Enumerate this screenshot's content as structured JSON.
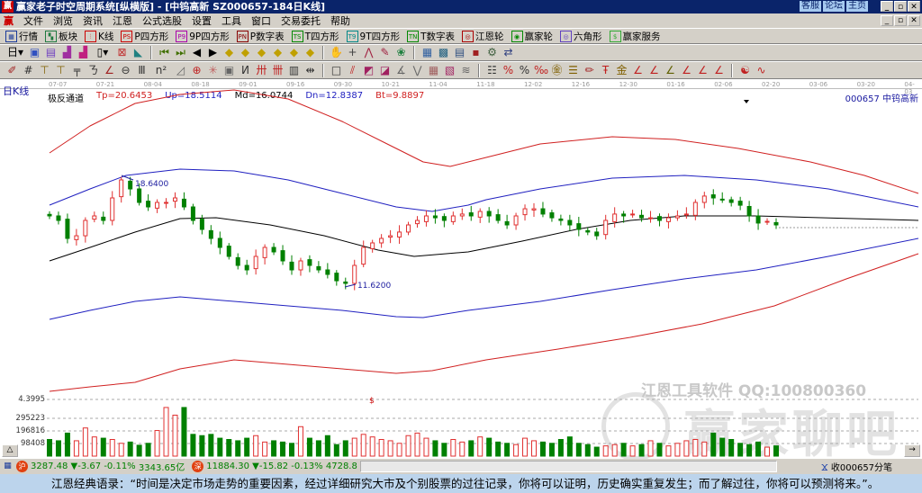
{
  "window": {
    "title": "赢家老子时空周期系统[纵横版] - [中钨高新   SZ000657-184日K线]",
    "logo": "赢",
    "links": [
      "客服",
      "论坛",
      "主页"
    ]
  },
  "menu": [
    "文件",
    "浏览",
    "资讯",
    "江恩",
    "公式选股",
    "设置",
    "工具",
    "窗口",
    "交易委托",
    "帮助"
  ],
  "toolbar1": [
    {
      "icon": "quote-grid-icon",
      "glyph": "▦",
      "color": "#1a3a9a",
      "label": "行情"
    },
    {
      "icon": "blocks-icon",
      "glyph": "▚",
      "color": "#207a40",
      "label": "板块"
    },
    {
      "icon": "kline-icon",
      "glyph": "⫶",
      "color": "#c00",
      "label": "K线"
    },
    {
      "icon": "ps-icon",
      "glyph": "PS",
      "color": "#c00",
      "label": "P四方形"
    },
    {
      "icon": "p9-icon",
      "glyph": "P9",
      "color": "#a0a",
      "label": "9P四方形"
    },
    {
      "icon": "pn-icon",
      "glyph": "PN",
      "color": "#800",
      "label": "P数字表"
    },
    {
      "icon": "ts-icon",
      "glyph": "TS",
      "color": "#080",
      "label": "T四方形"
    },
    {
      "icon": "t9-icon",
      "glyph": "T9",
      "color": "#088",
      "label": "9T四方形"
    },
    {
      "icon": "tn-icon",
      "glyph": "TN",
      "color": "#080",
      "label": "T数字表"
    },
    {
      "icon": "gann-wheel-icon",
      "glyph": "◎",
      "color": "#a00",
      "label": "江恩轮"
    },
    {
      "icon": "winner-wheel-icon",
      "glyph": "◉",
      "color": "#080",
      "label": "赢家轮"
    },
    {
      "icon": "hexagon-icon",
      "glyph": "◎",
      "color": "#6040c0",
      "label": "六角形"
    },
    {
      "icon": "dollar-icon",
      "glyph": "$",
      "color": "#3a3",
      "label": "赢家服务"
    }
  ],
  "toolbar2": [
    {
      "icon": "period-select-icon",
      "glyph": "日▾"
    },
    {
      "icon": "screen-icon",
      "glyph": "▣"
    },
    {
      "icon": "list-icon",
      "glyph": "▤"
    },
    {
      "icon": "bar-chart-icon",
      "glyph": "▟"
    },
    {
      "icon": "bar-chart-2-icon",
      "glyph": "▟"
    },
    {
      "icon": "candle-select-icon",
      "glyph": "▯▾"
    },
    {
      "icon": "calc-icon",
      "glyph": "⊠"
    },
    {
      "icon": "flag-icon",
      "glyph": "◣"
    },
    {
      "icon": "first-icon",
      "glyph": "⏮"
    },
    {
      "icon": "last-icon",
      "glyph": "⏭"
    },
    {
      "icon": "left-icon",
      "glyph": "◀"
    },
    {
      "icon": "right-icon",
      "glyph": "▶"
    },
    {
      "icon": "diamond-left-icon",
      "glyph": "◆"
    },
    {
      "icon": "diamond-right-icon",
      "glyph": "◆"
    },
    {
      "icon": "diamond-zoom-icon",
      "glyph": "◆"
    },
    {
      "icon": "diamond-shrink-icon",
      "glyph": "◆"
    },
    {
      "icon": "diamond-up-icon",
      "glyph": "◆"
    },
    {
      "icon": "diamond-down-icon",
      "glyph": "◆"
    },
    {
      "icon": "hand-icon",
      "glyph": "✋"
    },
    {
      "icon": "crosshair-icon",
      "glyph": "+"
    },
    {
      "icon": "line-icon",
      "glyph": "⋀"
    },
    {
      "icon": "draw-icon",
      "glyph": "✎"
    },
    {
      "icon": "brain-icon",
      "glyph": "❀"
    },
    {
      "icon": "calendar-icon",
      "glyph": "▦"
    },
    {
      "icon": "calculator-icon",
      "glyph": "▩"
    },
    {
      "icon": "notes-icon",
      "glyph": "▤"
    },
    {
      "icon": "save-icon",
      "glyph": "▪"
    },
    {
      "icon": "network-icon",
      "glyph": "⚙"
    },
    {
      "icon": "transfer-icon",
      "glyph": "⇄"
    }
  ],
  "toolbar3": [
    {
      "icon": "pen-icon",
      "glyph": "✐"
    },
    {
      "icon": "grid-icon",
      "glyph": "#"
    },
    {
      "icon": "gold-icon",
      "glyph": "⊤"
    },
    {
      "icon": "gold2-icon",
      "glyph": "⊤"
    },
    {
      "icon": "fib-icon",
      "glyph": "╤"
    },
    {
      "icon": "wave-icon",
      "glyph": "ㄋ"
    },
    {
      "icon": "angle-icon",
      "glyph": "∠"
    },
    {
      "icon": "circle-line-icon",
      "glyph": "⊖"
    },
    {
      "icon": "lines-icon",
      "glyph": "Ⅲ"
    },
    {
      "icon": "n2-icon",
      "glyph": "n²"
    },
    {
      "icon": "triangle-icon",
      "glyph": "◿"
    },
    {
      "icon": "target-icon",
      "glyph": "⊕"
    },
    {
      "icon": "star-icon",
      "glyph": "✳"
    },
    {
      "icon": "box-icon",
      "glyph": "▣"
    },
    {
      "icon": "slash-icon",
      "glyph": "И"
    },
    {
      "icon": "red-grid-icon",
      "glyph": "卅"
    },
    {
      "icon": "red-grid2-icon",
      "glyph": "卌"
    },
    {
      "icon": "bars-icon",
      "glyph": "▥"
    },
    {
      "icon": "width-icon",
      "glyph": "⇹"
    },
    {
      "icon": "square-icon",
      "glyph": "□"
    },
    {
      "icon": "fan-icon",
      "glyph": "⫽"
    },
    {
      "icon": "fan2-icon",
      "glyph": "◩"
    },
    {
      "icon": "fan3-icon",
      "glyph": "◪"
    },
    {
      "icon": "angle2-icon",
      "glyph": "∡"
    },
    {
      "icon": "zigzag-icon",
      "glyph": "⋁"
    },
    {
      "icon": "grid2-icon",
      "glyph": "▦"
    },
    {
      "icon": "grid3-icon",
      "glyph": "▧"
    },
    {
      "icon": "parallel-icon",
      "glyph": "≋"
    },
    {
      "icon": "table-icon",
      "glyph": "☷"
    },
    {
      "icon": "percent-red-icon",
      "glyph": "%"
    },
    {
      "icon": "percent-icon",
      "glyph": "%"
    },
    {
      "icon": "percent-line-icon",
      "glyph": "‰"
    },
    {
      "icon": "coin-icon",
      "glyph": "㊎"
    },
    {
      "icon": "gold-lines-icon",
      "glyph": "☰"
    },
    {
      "icon": "pencil-icon",
      "glyph": "✏"
    },
    {
      "icon": "strike-icon",
      "glyph": "Ŧ"
    },
    {
      "icon": "gold-line-icon",
      "glyph": "金"
    },
    {
      "icon": "angle3-icon",
      "glyph": "∠"
    },
    {
      "icon": "angle4-icon",
      "glyph": "∠"
    },
    {
      "icon": "angle5-icon",
      "glyph": "∠"
    },
    {
      "icon": "angle6-icon",
      "glyph": "∠"
    },
    {
      "icon": "angle7-icon",
      "glyph": "∠"
    },
    {
      "icon": "angle8-icon",
      "glyph": "∠"
    },
    {
      "icon": "yinyang-icon",
      "glyph": "☯"
    },
    {
      "icon": "curve-icon",
      "glyph": "∿"
    }
  ],
  "chart": {
    "period_label": "日K线",
    "dates": [
      "07-07",
      "07-21",
      "08-04",
      "08-18",
      "09-01",
      "09-16",
      "09-30",
      "10-21",
      "11-04",
      "11-18",
      "12-02",
      "12-16",
      "12-30",
      "01-16",
      "02-06",
      "02-20",
      "03-06",
      "03-20",
      "04-03"
    ],
    "indicator": {
      "name": "极反通道",
      "tp": "Tp=20.6453",
      "up": "Up=18.5114",
      "md": "Md=16.0744",
      "dn": "Dn=12.8387",
      "bt": "Bt=9.8897"
    },
    "stock": "000657  中钨高新",
    "high_label": "18.6400",
    "low_label": "11.6200",
    "colors": {
      "up": "#e03030",
      "down": "#008000",
      "tp": "#d02020",
      "band": "#2020c0",
      "mid": "#000000"
    },
    "closes": [
      16.03,
      15.74,
      14.58,
      14.75,
      15.74,
      16.03,
      15.74,
      17.19,
      18.35,
      17.77,
      16.9,
      16.61,
      16.9,
      16.9,
      17.19,
      16.61,
      15.74,
      15.16,
      14.58,
      14.0,
      13.42,
      12.84,
      12.55,
      13.42,
      14.0,
      13.71,
      13.13,
      12.55,
      13.13,
      12.84,
      12.55,
      12.26,
      11.85,
      11.68,
      12.84,
      14.0,
      14.29,
      14.58,
      14.75,
      14.99,
      15.45,
      15.74,
      16.03,
      15.91,
      15.74,
      16.03,
      16.15,
      16.03,
      16.32,
      16.03,
      15.74,
      15.45,
      16.03,
      16.49,
      16.49,
      16.15,
      15.91,
      15.74,
      15.45,
      15.16,
      14.99,
      14.75,
      15.74,
      16.15,
      16.03,
      16.15,
      15.91,
      15.91,
      15.74,
      15.91,
      16.03,
      16.15,
      16.9,
      17.31,
      17.19,
      17.07,
      16.9,
      16.72,
      16.03,
      15.57,
      15.68,
      15.45
    ],
    "volume_axis": [
      "4.3995",
      "295223",
      "196816",
      "98408"
    ],
    "volumes": [
      130000,
      120000,
      180000,
      120000,
      220000,
      150000,
      140000,
      130000,
      100000,
      110000,
      85000,
      100000,
      200000,
      380000,
      320000,
      380000,
      170000,
      160000,
      170000,
      140000,
      130000,
      120000,
      140000,
      160000,
      110000,
      120000,
      110000,
      100000,
      230000,
      140000,
      120000,
      160000,
      90000,
      120000,
      140000,
      170000,
      150000,
      130000,
      120000,
      100000,
      160000,
      180000,
      140000,
      120000,
      100000,
      130000,
      110000,
      120000,
      150000,
      140000,
      110000,
      100000,
      90000,
      140000,
      120000,
      110000,
      100000,
      130000,
      150000,
      100000,
      90000,
      70000,
      80000,
      90000,
      100000,
      80000,
      90000,
      120000,
      100000,
      80000,
      100000,
      120000,
      130000,
      110000,
      180000,
      140000,
      130000,
      100000,
      90000,
      110000,
      70000,
      80000
    ]
  },
  "watermark": {
    "line1": "江恩工具软件  QQ:100800360",
    "line2": "赢家聊吧"
  },
  "status": {
    "sh_index": "3287.48",
    "sh_change": "▼-3.67",
    "sh_pct": "-0.11%",
    "sh_amount": "3343.65亿",
    "sz_index": "11884.30",
    "sz_change": "▼-15.82",
    "sz_pct": "-0.13%",
    "sz_amount": "4728.8",
    "receive": "收000657分笔",
    "sh_icon": "沪",
    "sz_icon": "深"
  },
  "quote": "江恩经典语录：“时间是决定市场走势的重要因素，经过详细研究大市及个别股票的过往记录，你将可以证明，历史确实重复发生；而了解过往，你将可以预测将来。”。"
}
